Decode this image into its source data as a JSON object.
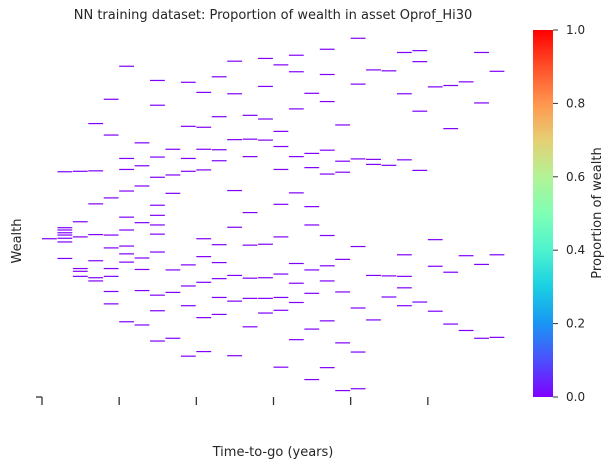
{
  "chart_data": {
    "type": "heatmap",
    "title": "NN training dataset: Proportion of wealth in asset Oprof_Hi30",
    "xlabel": "Time-to-go (years)",
    "ylabel": "Wealth",
    "colorbar_label": "Proportion of wealth",
    "colorbar_range": [
      0,
      1
    ],
    "colorbar_ticks": [
      "0.0",
      "0.2",
      "0.4",
      "0.6",
      "0.8",
      "1.0"
    ],
    "colormap": "rainbow",
    "cell_color": "#7f00ff",
    "grid": false,
    "x_ticks_labeled": false,
    "x_range": [
      0,
      30
    ],
    "y_range": [
      0,
      80
    ],
    "cells": [
      {
        "x": 0,
        "y": 34.5,
        "value": 0.0
      },
      {
        "x": 1,
        "y": 49.1,
        "value": 0.0
      },
      {
        "x": 1,
        "y": 36.9,
        "value": 0.0
      },
      {
        "x": 1,
        "y": 36.4,
        "value": 0.0
      },
      {
        "x": 1,
        "y": 35.8,
        "value": 0.0
      },
      {
        "x": 1,
        "y": 35.3,
        "value": 0.0
      },
      {
        "x": 1,
        "y": 34.6,
        "value": 0.0
      },
      {
        "x": 1,
        "y": 33.8,
        "value": 0.0
      },
      {
        "x": 1,
        "y": 30.2,
        "value": 0.0
      },
      {
        "x": 2,
        "y": 49.2,
        "value": 0.0
      },
      {
        "x": 2,
        "y": 38.2,
        "value": 0.0
      },
      {
        "x": 2,
        "y": 34.9,
        "value": 0.0
      },
      {
        "x": 2,
        "y": 28.0,
        "value": 0.0
      },
      {
        "x": 2,
        "y": 27.4,
        "value": 0.0
      },
      {
        "x": 2,
        "y": 26.3,
        "value": 0.0
      },
      {
        "x": 3,
        "y": 59.6,
        "value": 0.0
      },
      {
        "x": 3,
        "y": 49.3,
        "value": 0.0
      },
      {
        "x": 3,
        "y": 42.1,
        "value": 0.0
      },
      {
        "x": 3,
        "y": 35.4,
        "value": 0.0
      },
      {
        "x": 3,
        "y": 29.7,
        "value": 0.0
      },
      {
        "x": 3,
        "y": 26.0,
        "value": 0.0
      },
      {
        "x": 3,
        "y": 25.3,
        "value": 0.0
      },
      {
        "x": 4,
        "y": 64.9,
        "value": 0.0
      },
      {
        "x": 4,
        "y": 57.1,
        "value": 0.0
      },
      {
        "x": 4,
        "y": 43.4,
        "value": 0.0
      },
      {
        "x": 4,
        "y": 35.3,
        "value": 0.0
      },
      {
        "x": 4,
        "y": 32.5,
        "value": 0.0
      },
      {
        "x": 4,
        "y": 28.0,
        "value": 0.0
      },
      {
        "x": 4,
        "y": 26.3,
        "value": 0.0
      },
      {
        "x": 4,
        "y": 23.0,
        "value": 0.0
      },
      {
        "x": 4,
        "y": 20.3,
        "value": 0.0
      },
      {
        "x": 5,
        "y": 72.1,
        "value": 0.0
      },
      {
        "x": 5,
        "y": 52.0,
        "value": 0.0
      },
      {
        "x": 5,
        "y": 49.6,
        "value": 0.0
      },
      {
        "x": 5,
        "y": 44.9,
        "value": 0.0
      },
      {
        "x": 5,
        "y": 39.2,
        "value": 0.0
      },
      {
        "x": 5,
        "y": 36.4,
        "value": 0.0
      },
      {
        "x": 5,
        "y": 32.9,
        "value": 0.0
      },
      {
        "x": 5,
        "y": 31.2,
        "value": 0.0
      },
      {
        "x": 5,
        "y": 29.4,
        "value": 0.0
      },
      {
        "x": 5,
        "y": 16.4,
        "value": 0.0
      },
      {
        "x": 6,
        "y": 55.4,
        "value": 0.0
      },
      {
        "x": 6,
        "y": 50.4,
        "value": 0.0
      },
      {
        "x": 6,
        "y": 46.0,
        "value": 0.0
      },
      {
        "x": 6,
        "y": 38.0,
        "value": 0.0
      },
      {
        "x": 6,
        "y": 30.3,
        "value": 0.0
      },
      {
        "x": 6,
        "y": 27.8,
        "value": 0.0
      },
      {
        "x": 6,
        "y": 23.2,
        "value": 0.0
      },
      {
        "x": 6,
        "y": 15.7,
        "value": 0.0
      },
      {
        "x": 7,
        "y": 69.0,
        "value": 0.0
      },
      {
        "x": 7,
        "y": 63.6,
        "value": 0.0
      },
      {
        "x": 7,
        "y": 52.3,
        "value": 0.0
      },
      {
        "x": 7,
        "y": 47.9,
        "value": 0.0
      },
      {
        "x": 7,
        "y": 41.8,
        "value": 0.0
      },
      {
        "x": 7,
        "y": 39.6,
        "value": 0.0
      },
      {
        "x": 7,
        "y": 37.5,
        "value": 0.0
      },
      {
        "x": 7,
        "y": 35.5,
        "value": 0.0
      },
      {
        "x": 7,
        "y": 31.6,
        "value": 0.0
      },
      {
        "x": 7,
        "y": 22.2,
        "value": 0.0
      },
      {
        "x": 7,
        "y": 18.8,
        "value": 0.0
      },
      {
        "x": 7,
        "y": 12.2,
        "value": 0.0
      },
      {
        "x": 8,
        "y": 54.0,
        "value": 0.0
      },
      {
        "x": 8,
        "y": 48.4,
        "value": 0.0
      },
      {
        "x": 8,
        "y": 44.4,
        "value": 0.0
      },
      {
        "x": 8,
        "y": 27.7,
        "value": 0.0
      },
      {
        "x": 8,
        "y": 22.8,
        "value": 0.0
      },
      {
        "x": 8,
        "y": 12.8,
        "value": 0.0
      },
      {
        "x": 9,
        "y": 68.6,
        "value": 0.0
      },
      {
        "x": 9,
        "y": 59.0,
        "value": 0.0
      },
      {
        "x": 9,
        "y": 52.0,
        "value": 0.0
      },
      {
        "x": 9,
        "y": 49.2,
        "value": 0.0
      },
      {
        "x": 9,
        "y": 28.8,
        "value": 0.0
      },
      {
        "x": 9,
        "y": 24.2,
        "value": 0.0
      },
      {
        "x": 9,
        "y": 19.9,
        "value": 0.0
      },
      {
        "x": 9,
        "y": 8.9,
        "value": 0.0
      },
      {
        "x": 10,
        "y": 66.4,
        "value": 0.0
      },
      {
        "x": 10,
        "y": 58.8,
        "value": 0.0
      },
      {
        "x": 10,
        "y": 54.0,
        "value": 0.0
      },
      {
        "x": 10,
        "y": 49.5,
        "value": 0.0
      },
      {
        "x": 10,
        "y": 34.5,
        "value": 0.0
      },
      {
        "x": 10,
        "y": 30.6,
        "value": 0.0
      },
      {
        "x": 10,
        "y": 25.0,
        "value": 0.0
      },
      {
        "x": 10,
        "y": 17.3,
        "value": 0.0
      },
      {
        "x": 10,
        "y": 9.9,
        "value": 0.0
      },
      {
        "x": 11,
        "y": 69.8,
        "value": 0.0
      },
      {
        "x": 11,
        "y": 61.1,
        "value": 0.0
      },
      {
        "x": 11,
        "y": 53.9,
        "value": 0.0
      },
      {
        "x": 11,
        "y": 51.5,
        "value": 0.0
      },
      {
        "x": 11,
        "y": 33.2,
        "value": 0.0
      },
      {
        "x": 11,
        "y": 29.3,
        "value": 0.0
      },
      {
        "x": 11,
        "y": 25.8,
        "value": 0.0
      },
      {
        "x": 11,
        "y": 21.7,
        "value": 0.0
      },
      {
        "x": 11,
        "y": 18.0,
        "value": 0.0
      },
      {
        "x": 12,
        "y": 73.2,
        "value": 0.0
      },
      {
        "x": 12,
        "y": 66.1,
        "value": 0.0
      },
      {
        "x": 12,
        "y": 56.1,
        "value": 0.0
      },
      {
        "x": 12,
        "y": 45.0,
        "value": 0.0
      },
      {
        "x": 12,
        "y": 37.0,
        "value": 0.0
      },
      {
        "x": 12,
        "y": 26.5,
        "value": 0.0
      },
      {
        "x": 12,
        "y": 20.9,
        "value": 0.0
      },
      {
        "x": 12,
        "y": 9.0,
        "value": 0.0
      },
      {
        "x": 13,
        "y": 61.4,
        "value": 0.0
      },
      {
        "x": 13,
        "y": 56.2,
        "value": 0.0
      },
      {
        "x": 13,
        "y": 52.4,
        "value": 0.0
      },
      {
        "x": 13,
        "y": 40.2,
        "value": 0.0
      },
      {
        "x": 13,
        "y": 33.1,
        "value": 0.0
      },
      {
        "x": 13,
        "y": 25.9,
        "value": 0.0
      },
      {
        "x": 13,
        "y": 21.5,
        "value": 0.0
      },
      {
        "x": 13,
        "y": 15.3,
        "value": 0.0
      },
      {
        "x": 14,
        "y": 73.8,
        "value": 0.0
      },
      {
        "x": 14,
        "y": 67.7,
        "value": 0.0
      },
      {
        "x": 14,
        "y": 60.6,
        "value": 0.0
      },
      {
        "x": 14,
        "y": 56.0,
        "value": 0.0
      },
      {
        "x": 14,
        "y": 33.3,
        "value": 0.0
      },
      {
        "x": 14,
        "y": 26.0,
        "value": 0.0
      },
      {
        "x": 14,
        "y": 21.5,
        "value": 0.0
      },
      {
        "x": 14,
        "y": 18.3,
        "value": 0.0
      },
      {
        "x": 15,
        "y": 72.4,
        "value": 0.0
      },
      {
        "x": 15,
        "y": 57.9,
        "value": 0.0
      },
      {
        "x": 15,
        "y": 54.6,
        "value": 0.0
      },
      {
        "x": 15,
        "y": 49.6,
        "value": 0.0
      },
      {
        "x": 15,
        "y": 42.0,
        "value": 0.0
      },
      {
        "x": 15,
        "y": 34.9,
        "value": 0.0
      },
      {
        "x": 15,
        "y": 26.8,
        "value": 0.0
      },
      {
        "x": 15,
        "y": 21.7,
        "value": 0.0
      },
      {
        "x": 15,
        "y": 18.9,
        "value": 0.0
      },
      {
        "x": 15,
        "y": 6.5,
        "value": 0.0
      },
      {
        "x": 16,
        "y": 74.5,
        "value": 0.0
      },
      {
        "x": 16,
        "y": 70.9,
        "value": 0.0
      },
      {
        "x": 16,
        "y": 62.8,
        "value": 0.0
      },
      {
        "x": 16,
        "y": 52.4,
        "value": 0.0
      },
      {
        "x": 16,
        "y": 44.5,
        "value": 0.0
      },
      {
        "x": 16,
        "y": 29.1,
        "value": 0.0
      },
      {
        "x": 16,
        "y": 24.8,
        "value": 0.0
      },
      {
        "x": 16,
        "y": 20.6,
        "value": 0.0
      },
      {
        "x": 16,
        "y": 12.5,
        "value": 0.0
      },
      {
        "x": 17,
        "y": 66.2,
        "value": 0.0
      },
      {
        "x": 17,
        "y": 53.1,
        "value": 0.0
      },
      {
        "x": 17,
        "y": 50.0,
        "value": 0.0
      },
      {
        "x": 17,
        "y": 41.5,
        "value": 0.0
      },
      {
        "x": 17,
        "y": 37.5,
        "value": 0.0
      },
      {
        "x": 17,
        "y": 27.7,
        "value": 0.0
      },
      {
        "x": 17,
        "y": 22.6,
        "value": 0.0
      },
      {
        "x": 17,
        "y": 14.8,
        "value": 0.0
      },
      {
        "x": 17,
        "y": 3.8,
        "value": 0.0
      },
      {
        "x": 18,
        "y": 75.8,
        "value": 0.0
      },
      {
        "x": 18,
        "y": 70.3,
        "value": 0.0
      },
      {
        "x": 18,
        "y": 64.4,
        "value": 0.0
      },
      {
        "x": 18,
        "y": 53.8,
        "value": 0.0
      },
      {
        "x": 18,
        "y": 48.6,
        "value": 0.0
      },
      {
        "x": 18,
        "y": 35.2,
        "value": 0.0
      },
      {
        "x": 18,
        "y": 28.6,
        "value": 0.0
      },
      {
        "x": 18,
        "y": 25.3,
        "value": 0.0
      },
      {
        "x": 18,
        "y": 16.6,
        "value": 0.0
      },
      {
        "x": 18,
        "y": 6.4,
        "value": 0.0
      },
      {
        "x": 19,
        "y": 59.3,
        "value": 0.0
      },
      {
        "x": 19,
        "y": 51.4,
        "value": 0.0
      },
      {
        "x": 19,
        "y": 49.0,
        "value": 0.0
      },
      {
        "x": 19,
        "y": 30.0,
        "value": 0.0
      },
      {
        "x": 19,
        "y": 22.9,
        "value": 0.0
      },
      {
        "x": 19,
        "y": 11.8,
        "value": 0.0
      },
      {
        "x": 19,
        "y": 1.4,
        "value": 0.0
      },
      {
        "x": 20,
        "y": 78.2,
        "value": 0.0
      },
      {
        "x": 20,
        "y": 68.2,
        "value": 0.0
      },
      {
        "x": 20,
        "y": 51.9,
        "value": 0.0
      },
      {
        "x": 20,
        "y": 32.8,
        "value": 0.0
      },
      {
        "x": 20,
        "y": 19.4,
        "value": 0.0
      },
      {
        "x": 20,
        "y": 9.8,
        "value": 0.0
      },
      {
        "x": 20,
        "y": 1.8,
        "value": 0.0
      },
      {
        "x": 21,
        "y": 71.3,
        "value": 0.0
      },
      {
        "x": 21,
        "y": 51.8,
        "value": 0.0
      },
      {
        "x": 21,
        "y": 50.7,
        "value": 0.0
      },
      {
        "x": 21,
        "y": 26.5,
        "value": 0.0
      },
      {
        "x": 21,
        "y": 16.8,
        "value": 0.0
      },
      {
        "x": 22,
        "y": 71.1,
        "value": 0.0
      },
      {
        "x": 22,
        "y": 50.5,
        "value": 0.0
      },
      {
        "x": 22,
        "y": 26.4,
        "value": 0.0
      },
      {
        "x": 22,
        "y": 21.8,
        "value": 0.0
      },
      {
        "x": 23,
        "y": 75.1,
        "value": 0.0
      },
      {
        "x": 23,
        "y": 66.1,
        "value": 0.0
      },
      {
        "x": 23,
        "y": 51.7,
        "value": 0.0
      },
      {
        "x": 23,
        "y": 31.0,
        "value": 0.0
      },
      {
        "x": 23,
        "y": 26.3,
        "value": 0.0
      },
      {
        "x": 23,
        "y": 23.8,
        "value": 0.0
      },
      {
        "x": 23,
        "y": 19.9,
        "value": 0.0
      },
      {
        "x": 24,
        "y": 75.5,
        "value": 0.0
      },
      {
        "x": 24,
        "y": 73.1,
        "value": 0.0
      },
      {
        "x": 24,
        "y": 62.3,
        "value": 0.0
      },
      {
        "x": 24,
        "y": 49.4,
        "value": 0.0
      },
      {
        "x": 24,
        "y": 20.7,
        "value": 0.0
      },
      {
        "x": 25,
        "y": 67.6,
        "value": 0.0
      },
      {
        "x": 25,
        "y": 34.3,
        "value": 0.0
      },
      {
        "x": 25,
        "y": 28.5,
        "value": 0.0
      },
      {
        "x": 25,
        "y": 18.7,
        "value": 0.0
      },
      {
        "x": 26,
        "y": 67.9,
        "value": 0.0
      },
      {
        "x": 26,
        "y": 58.5,
        "value": 0.0
      },
      {
        "x": 26,
        "y": 27.2,
        "value": 0.0
      },
      {
        "x": 26,
        "y": 15.9,
        "value": 0.0
      },
      {
        "x": 27,
        "y": 68.7,
        "value": 0.0
      },
      {
        "x": 27,
        "y": 30.8,
        "value": 0.0
      },
      {
        "x": 27,
        "y": 14.5,
        "value": 0.0
      },
      {
        "x": 28,
        "y": 75.1,
        "value": 0.0
      },
      {
        "x": 28,
        "y": 64.1,
        "value": 0.0
      },
      {
        "x": 28,
        "y": 28.9,
        "value": 0.0
      },
      {
        "x": 28,
        "y": 12.8,
        "value": 0.0
      },
      {
        "x": 29,
        "y": 71.0,
        "value": 0.0
      },
      {
        "x": 29,
        "y": 31.0,
        "value": 0.0
      },
      {
        "x": 29,
        "y": 13.0,
        "value": 0.0
      }
    ]
  }
}
